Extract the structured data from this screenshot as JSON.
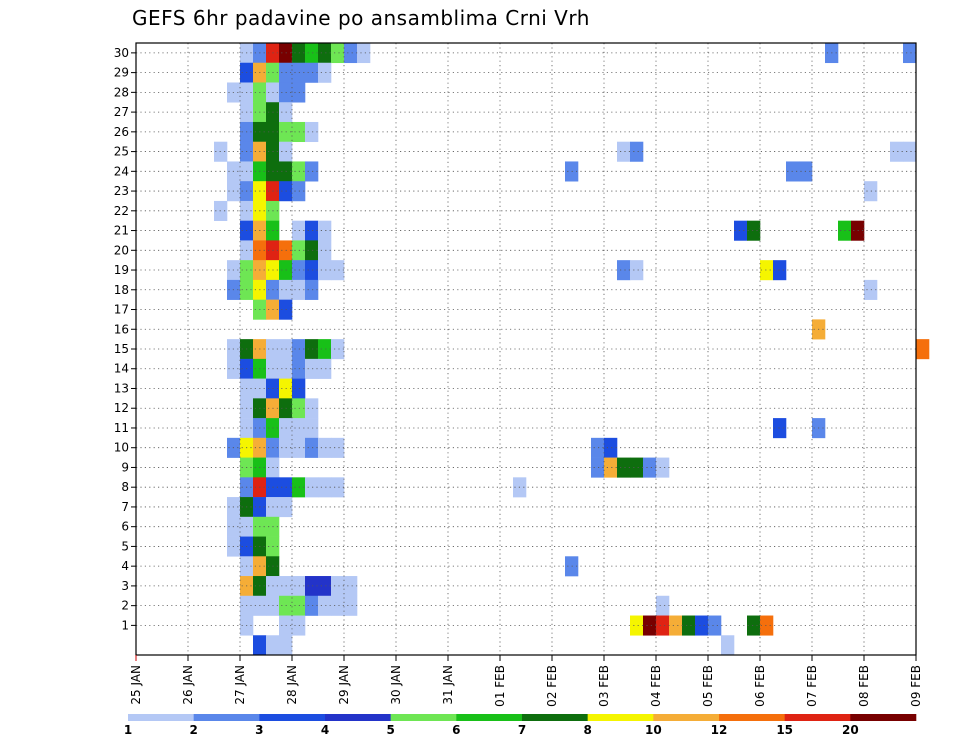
{
  "chart_data": {
    "type": "heatmap",
    "title": "GEFS 6hr padavine po ansamblima Crni Vrh",
    "x_tick_labels": [
      "25 JAN",
      "26 JAN",
      "27 JAN",
      "28 JAN",
      "29 JAN",
      "30 JAN",
      "31 JAN",
      "01 FEB",
      "02 FEB",
      "03 FEB",
      "04 FEB",
      "05 FEB",
      "06 FEB",
      "07 FEB",
      "08 FEB",
      "09 FEB"
    ],
    "y_tick_labels": [
      "1",
      "2",
      "3",
      "4",
      "5",
      "6",
      "7",
      "8",
      "9",
      "10",
      "11",
      "12",
      "13",
      "14",
      "15",
      "16",
      "17",
      "18",
      "19",
      "20",
      "21",
      "22",
      "23",
      "24",
      "25",
      "26",
      "27",
      "28",
      "29",
      "30"
    ],
    "x_range_days": [
      0,
      15
    ],
    "y_range": [
      0,
      30
    ],
    "grid": true,
    "time_step_hours": 6,
    "colorbar": {
      "labels": [
        "1",
        "2",
        "3",
        "4",
        "5",
        "6",
        "7",
        "8",
        "10",
        "12",
        "15",
        "20"
      ],
      "colors": [
        "#b4c8f5",
        "#5a87ea",
        "#1c4de0",
        "#2333c9",
        "#6ee654",
        "#18c018",
        "#0e6e0e",
        "#f5f500",
        "#f5ad37",
        "#f56f0c",
        "#df2313",
        "#780000"
      ]
    },
    "cells": [
      {
        "m": 30,
        "d": [
          [
            8,
            1
          ],
          [
            9,
            2
          ],
          [
            10,
            11
          ],
          [
            11,
            12
          ],
          [
            12,
            7
          ],
          [
            13,
            6
          ],
          [
            14,
            7
          ],
          [
            15,
            5
          ],
          [
            16,
            2
          ],
          [
            17,
            1
          ],
          [
            53,
            2
          ],
          [
            59,
            2
          ]
        ]
      },
      {
        "m": 29,
        "d": [
          [
            8,
            3
          ],
          [
            9,
            9
          ],
          [
            10,
            5
          ],
          [
            11,
            2
          ],
          [
            12,
            2
          ],
          [
            13,
            2
          ],
          [
            14,
            1
          ]
        ]
      },
      {
        "m": 28,
        "d": [
          [
            7,
            1
          ],
          [
            8,
            1
          ],
          [
            9,
            5
          ],
          [
            10,
            1
          ],
          [
            11,
            2
          ],
          [
            12,
            2
          ]
        ]
      },
      {
        "m": 27,
        "d": [
          [
            8,
            1
          ],
          [
            9,
            5
          ],
          [
            10,
            7
          ],
          [
            11,
            1
          ]
        ]
      },
      {
        "m": 26,
        "d": [
          [
            8,
            2
          ],
          [
            9,
            7
          ],
          [
            10,
            7
          ],
          [
            11,
            5
          ],
          [
            12,
            5
          ],
          [
            13,
            1
          ]
        ]
      },
      {
        "m": 25,
        "d": [
          [
            6,
            1
          ],
          [
            8,
            2
          ],
          [
            9,
            9
          ],
          [
            10,
            7
          ],
          [
            11,
            1
          ],
          [
            37,
            1
          ],
          [
            38,
            2
          ],
          [
            58,
            1
          ],
          [
            59,
            1
          ]
        ]
      },
      {
        "m": 24,
        "d": [
          [
            7,
            1
          ],
          [
            8,
            1
          ],
          [
            9,
            6
          ],
          [
            10,
            7
          ],
          [
            11,
            7
          ],
          [
            12,
            5
          ],
          [
            13,
            2
          ],
          [
            33,
            2
          ],
          [
            50,
            2
          ],
          [
            51,
            2
          ]
        ]
      },
      {
        "m": 23,
        "d": [
          [
            7,
            1
          ],
          [
            8,
            2
          ],
          [
            9,
            8
          ],
          [
            10,
            11
          ],
          [
            11,
            3
          ],
          [
            12,
            2
          ],
          [
            56,
            1
          ]
        ]
      },
      {
        "m": 22,
        "d": [
          [
            6,
            1
          ],
          [
            8,
            1
          ],
          [
            9,
            8
          ],
          [
            10,
            5
          ]
        ]
      },
      {
        "m": 21,
        "d": [
          [
            8,
            3
          ],
          [
            9,
            9
          ],
          [
            10,
            6
          ],
          [
            12,
            1
          ],
          [
            13,
            3
          ],
          [
            14,
            1
          ],
          [
            46,
            3
          ],
          [
            47,
            7
          ],
          [
            54,
            6
          ],
          [
            55,
            12
          ]
        ]
      },
      {
        "m": 20,
        "d": [
          [
            8,
            1
          ],
          [
            9,
            10
          ],
          [
            10,
            11
          ],
          [
            11,
            10
          ],
          [
            12,
            5
          ],
          [
            13,
            7
          ],
          [
            14,
            1
          ]
        ]
      },
      {
        "m": 19,
        "d": [
          [
            7,
            1
          ],
          [
            8,
            5
          ],
          [
            9,
            9
          ],
          [
            10,
            8
          ],
          [
            11,
            6
          ],
          [
            12,
            2
          ],
          [
            13,
            3
          ],
          [
            14,
            1
          ],
          [
            15,
            1
          ],
          [
            37,
            2
          ],
          [
            38,
            1
          ],
          [
            48,
            8
          ],
          [
            49,
            3
          ]
        ]
      },
      {
        "m": 18,
        "d": [
          [
            7,
            2
          ],
          [
            8,
            5
          ],
          [
            9,
            8
          ],
          [
            10,
            2
          ],
          [
            11,
            1
          ],
          [
            12,
            1
          ],
          [
            13,
            2
          ],
          [
            56,
            1
          ]
        ]
      },
      {
        "m": 17,
        "d": [
          [
            9,
            5
          ],
          [
            10,
            9
          ],
          [
            11,
            3
          ]
        ]
      },
      {
        "m": 16,
        "d": [
          [
            52,
            9
          ]
        ]
      },
      {
        "m": 15,
        "d": [
          [
            7,
            1
          ],
          [
            8,
            7
          ],
          [
            9,
            9
          ],
          [
            10,
            1
          ],
          [
            11,
            1
          ],
          [
            12,
            2
          ],
          [
            13,
            7
          ],
          [
            14,
            6
          ],
          [
            15,
            1
          ],
          [
            60,
            10
          ]
        ]
      },
      {
        "m": 14,
        "d": [
          [
            7,
            1
          ],
          [
            8,
            3
          ],
          [
            9,
            6
          ],
          [
            10,
            1
          ],
          [
            11,
            1
          ],
          [
            12,
            2
          ],
          [
            13,
            1
          ],
          [
            14,
            1
          ]
        ]
      },
      {
        "m": 13,
        "d": [
          [
            8,
            1
          ],
          [
            9,
            1
          ],
          [
            10,
            3
          ],
          [
            11,
            8
          ],
          [
            12,
            3
          ]
        ]
      },
      {
        "m": 12,
        "d": [
          [
            8,
            1
          ],
          [
            9,
            7
          ],
          [
            10,
            9
          ],
          [
            11,
            7
          ],
          [
            12,
            5
          ],
          [
            13,
            1
          ]
        ]
      },
      {
        "m": 11,
        "d": [
          [
            8,
            1
          ],
          [
            9,
            2
          ],
          [
            10,
            6
          ],
          [
            11,
            1
          ],
          [
            12,
            1
          ],
          [
            13,
            1
          ],
          [
            49,
            3
          ],
          [
            52,
            2
          ]
        ]
      },
      {
        "m": 10,
        "d": [
          [
            7,
            2
          ],
          [
            8,
            8
          ],
          [
            9,
            9
          ],
          [
            10,
            2
          ],
          [
            11,
            1
          ],
          [
            12,
            1
          ],
          [
            13,
            2
          ],
          [
            14,
            1
          ],
          [
            15,
            1
          ],
          [
            35,
            2
          ],
          [
            36,
            3
          ]
        ]
      },
      {
        "m": 9,
        "d": [
          [
            8,
            5
          ],
          [
            9,
            6
          ],
          [
            10,
            1
          ],
          [
            35,
            2
          ],
          [
            36,
            9
          ],
          [
            37,
            7
          ],
          [
            38,
            7
          ],
          [
            39,
            2
          ],
          [
            40,
            1
          ]
        ]
      },
      {
        "m": 8,
        "d": [
          [
            8,
            2
          ],
          [
            9,
            11
          ],
          [
            10,
            3
          ],
          [
            11,
            3
          ],
          [
            12,
            6
          ],
          [
            13,
            1
          ],
          [
            14,
            1
          ],
          [
            15,
            1
          ],
          [
            29,
            1
          ]
        ]
      },
      {
        "m": 7,
        "d": [
          [
            7,
            1
          ],
          [
            8,
            7
          ],
          [
            9,
            3
          ],
          [
            10,
            1
          ],
          [
            11,
            1
          ]
        ]
      },
      {
        "m": 6,
        "d": [
          [
            7,
            1
          ],
          [
            8,
            1
          ],
          [
            9,
            5
          ],
          [
            10,
            5
          ]
        ]
      },
      {
        "m": 5,
        "d": [
          [
            7,
            1
          ],
          [
            8,
            3
          ],
          [
            9,
            7
          ],
          [
            10,
            5
          ]
        ]
      },
      {
        "m": 4,
        "d": [
          [
            8,
            1
          ],
          [
            9,
            9
          ],
          [
            10,
            7
          ],
          [
            33,
            2
          ]
        ]
      },
      {
        "m": 3,
        "d": [
          [
            8,
            9
          ],
          [
            9,
            7
          ],
          [
            10,
            1
          ],
          [
            11,
            1
          ],
          [
            12,
            1
          ],
          [
            13,
            4
          ],
          [
            14,
            4
          ],
          [
            15,
            1
          ],
          [
            16,
            1
          ]
        ]
      },
      {
        "m": 2,
        "d": [
          [
            8,
            1
          ],
          [
            9,
            1
          ],
          [
            10,
            1
          ],
          [
            11,
            5
          ],
          [
            12,
            5
          ],
          [
            13,
            2
          ],
          [
            14,
            1
          ],
          [
            15,
            1
          ],
          [
            16,
            1
          ],
          [
            40,
            1
          ]
        ]
      },
      {
        "m": 1,
        "d": [
          [
            8,
            1
          ],
          [
            11,
            1
          ],
          [
            12,
            1
          ],
          [
            38,
            8
          ],
          [
            39,
            12
          ],
          [
            40,
            11
          ],
          [
            41,
            9
          ],
          [
            42,
            7
          ],
          [
            43,
            3
          ],
          [
            44,
            2
          ],
          [
            47,
            7
          ],
          [
            48,
            10
          ]
        ]
      },
      {
        "m": 0,
        "d": [
          [
            9,
            3
          ],
          [
            10,
            1
          ],
          [
            11,
            1
          ],
          [
            45,
            1
          ]
        ]
      }
    ]
  }
}
